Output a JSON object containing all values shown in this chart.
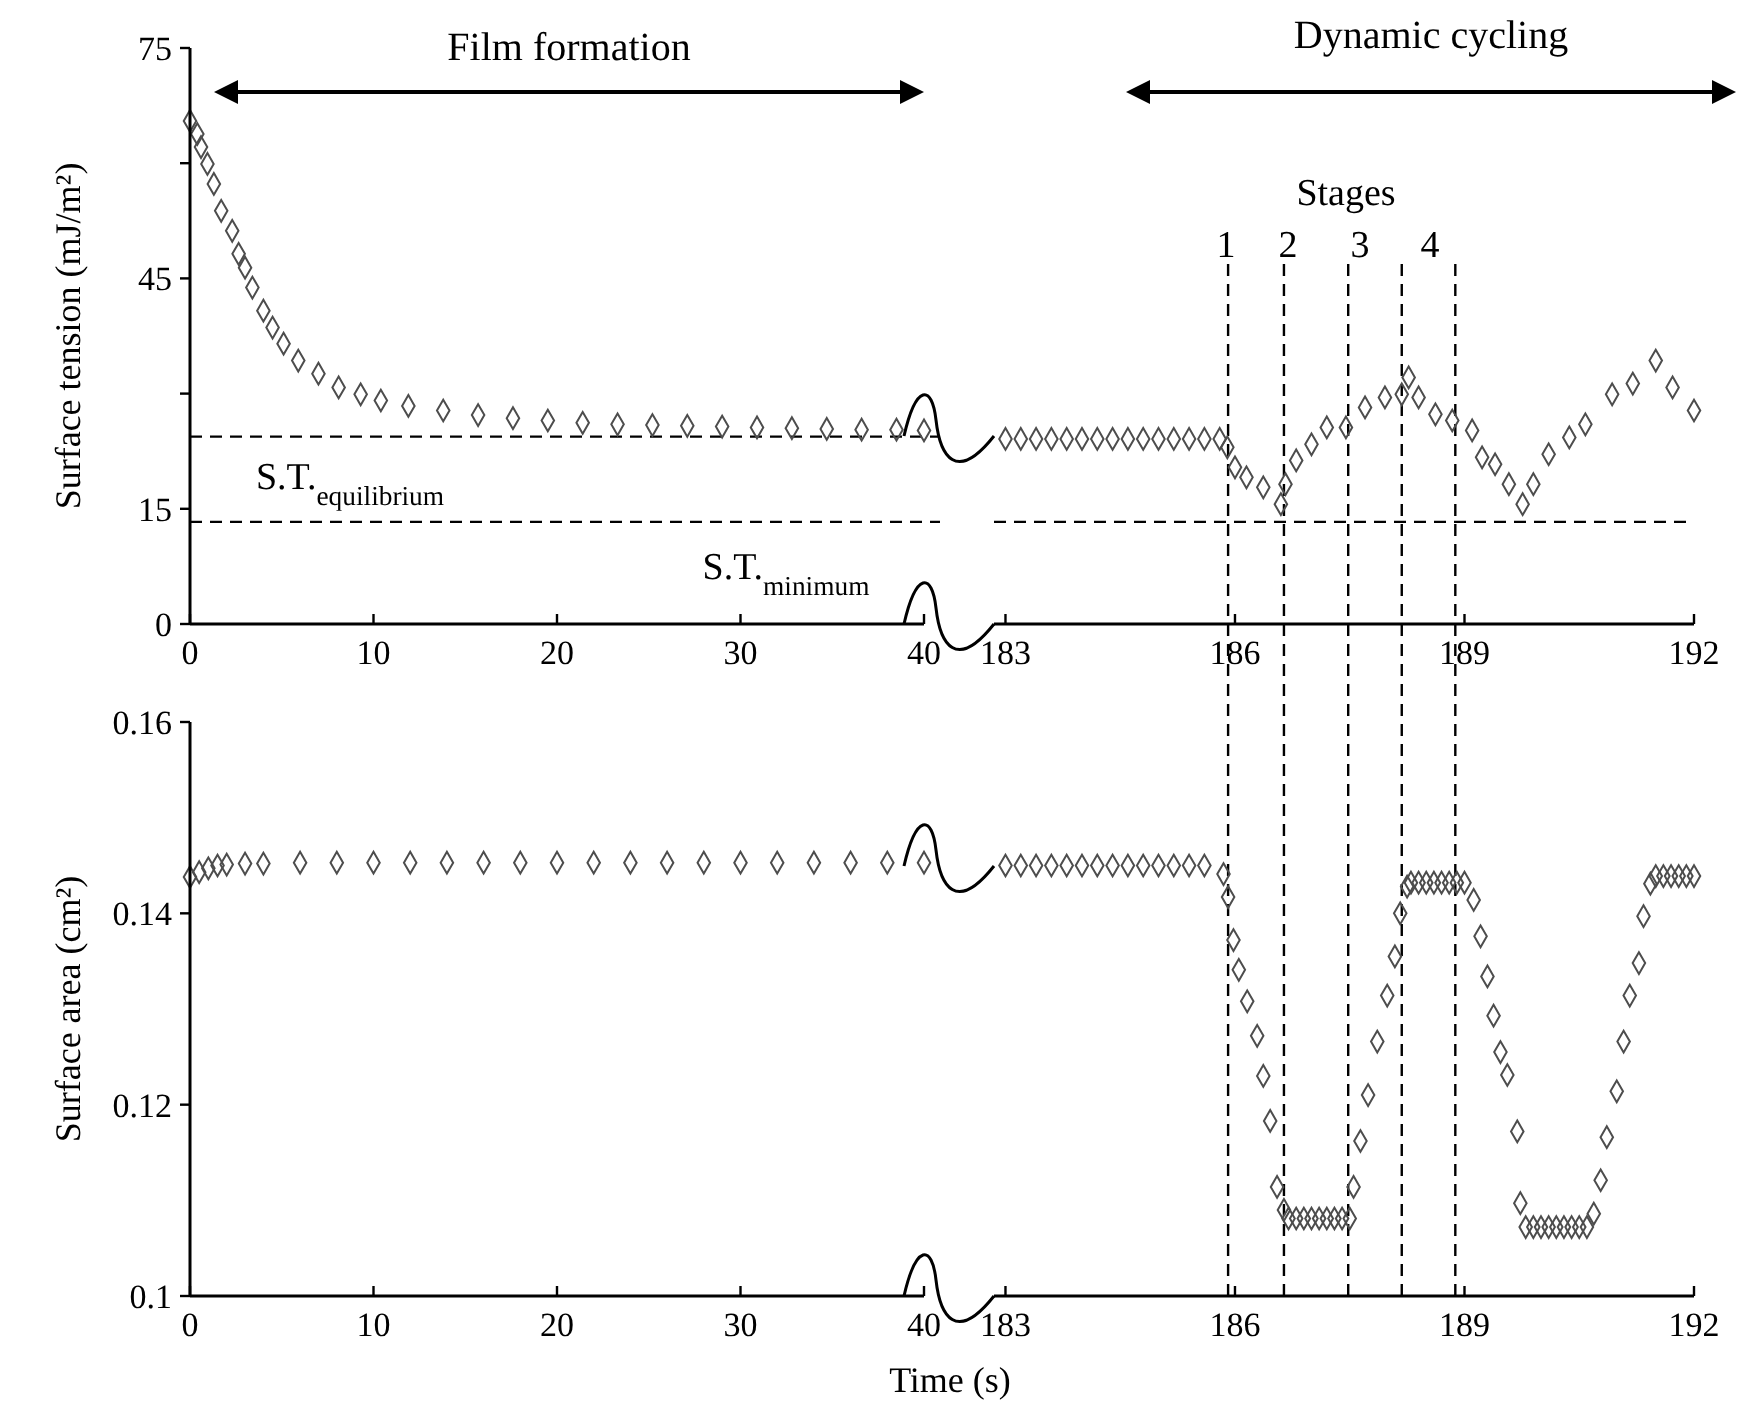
{
  "chart_data": [
    {
      "type": "scatter",
      "title": "Film formation",
      "ylabel": "Surface tension (mJ/m²)",
      "xlim": [
        0,
        40
      ],
      "xticks": [
        0,
        10,
        20,
        30,
        40
      ],
      "ylim": [
        0,
        75
      ],
      "yticks": [
        0,
        15,
        {
          "value": 30,
          "label": null
        },
        45,
        {
          "value": 60,
          "label": null
        },
        75
      ],
      "marker": "diamond",
      "series": [
        {
          "color": "#4d4d4d",
          "x": [
            0,
            0.4,
            0.6,
            0.95,
            1.3,
            1.7,
            2.3,
            2.65,
            3,
            3.4,
            4,
            4.5,
            5.1,
            5.9,
            7,
            8.1,
            9.3,
            10.4,
            11.9,
            13.8,
            15.7,
            17.6,
            19.5,
            21.4,
            23.3,
            25.2,
            27.1,
            29,
            30.9,
            32.8,
            34.7,
            36.6,
            38.5,
            40
          ],
          "values": [
            65.5,
            63.8,
            62.1,
            59.9,
            57.3,
            53.8,
            51.2,
            48.2,
            46.4,
            43.8,
            40.8,
            38.6,
            36.5,
            34.3,
            32.6,
            30.8,
            29.9,
            29.1,
            28.4,
            27.8,
            27.2,
            26.8,
            26.5,
            26.2,
            26.0,
            25.9,
            25.8,
            25.7,
            25.6,
            25.5,
            25.4,
            25.3,
            25.3,
            25.2
          ]
        }
      ],
      "ref_lines": [
        {
          "axis": "y",
          "value": 24.4,
          "line_style": "dashed",
          "color": "#000000"
        },
        {
          "axis": "y",
          "value": 13.3,
          "line_style": "dashed",
          "color": "#000000"
        }
      ],
      "annotations": [
        "S.T.$_{equilibrium}$",
        "S.T.$_{minimum}$"
      ]
    },
    {
      "type": "scatter",
      "title": "Dynamic cycling",
      "xlim": [
        182.85,
        192
      ],
      "xticks": [
        183,
        186,
        189,
        192
      ],
      "ylim": [
        0,
        75
      ],
      "tick_labels": "x",
      "marker": "diamond",
      "series": [
        {
          "color": "#4d4d4d",
          "x": [
            183,
            183.2,
            183.4,
            183.6,
            183.8,
            184,
            184.2,
            184.4,
            184.6,
            184.8,
            185,
            185.2,
            185.4,
            185.6,
            185.8,
            185.9,
            186,
            186.15,
            186.37,
            186.6,
            186.66,
            186.8,
            187,
            187.2,
            187.45,
            187.7,
            187.96,
            188.18,
            188.27,
            188.4,
            188.62,
            188.84,
            189.1,
            189.23,
            189.4,
            189.58,
            189.76,
            189.9,
            190.1,
            190.37,
            190.58,
            190.93,
            191.2,
            191.5,
            191.72,
            192
          ],
          "values": [
            24.1,
            24.1,
            24.1,
            24.1,
            24.1,
            24.1,
            24.1,
            24.1,
            24.1,
            24.1,
            24.1,
            24.1,
            24.1,
            24.1,
            24.1,
            23.0,
            20.4,
            19.1,
            17.8,
            15.6,
            18.2,
            21.3,
            23.4,
            25.6,
            25.6,
            28.2,
            29.5,
            29.9,
            32.1,
            29.5,
            27.3,
            26.5,
            25.2,
            21.7,
            20.8,
            18.2,
            15.6,
            18.2,
            22.1,
            24.3,
            26.0,
            29.9,
            31.3,
            34.3,
            30.8,
            27.8
          ]
        }
      ],
      "ref_lines": [
        {
          "axis": "y",
          "value": 13.3,
          "line_style": "dashed",
          "color": "#000000"
        },
        {
          "axis": "x",
          "value": 185.91,
          "line_style": "dashed",
          "color": "#000000"
        },
        {
          "axis": "x",
          "value": 186.64,
          "line_style": "dashed",
          "color": "#000000"
        },
        {
          "axis": "x",
          "value": 187.48,
          "line_style": "dashed",
          "color": "#000000"
        },
        {
          "axis": "x",
          "value": 188.18,
          "line_style": "dashed",
          "color": "#000000"
        },
        {
          "axis": "x",
          "value": 188.88,
          "line_style": "dashed",
          "color": "#000000"
        }
      ],
      "annotations": [
        "Stages",
        "1",
        "2",
        "3",
        "4"
      ]
    },
    {
      "type": "scatter",
      "xlabel": "Time (s)",
      "ylabel": "Surface area (cm²)",
      "xlim": [
        0,
        40
      ],
      "xticks": [
        0,
        10,
        20,
        30,
        40
      ],
      "ylim": [
        0.1,
        0.16
      ],
      "yticks": [
        0.1,
        0.12,
        0.14,
        0.16
      ],
      "marker": "diamond",
      "series": [
        {
          "color": "#4d4d4d",
          "x": [
            0,
            0.5,
            1,
            1.5,
            2,
            3,
            4,
            6,
            8,
            10,
            12,
            14,
            16,
            18,
            20,
            22,
            24,
            26,
            28,
            30,
            32,
            34,
            36,
            38,
            40
          ],
          "values": [
            0.1438,
            0.1443,
            0.1447,
            0.145,
            0.1451,
            0.1452,
            0.1452,
            0.1453,
            0.1453,
            0.1453,
            0.1453,
            0.1453,
            0.1453,
            0.1453,
            0.1453,
            0.1453,
            0.1453,
            0.1453,
            0.1453,
            0.1453,
            0.1453,
            0.1453,
            0.1453,
            0.1453,
            0.1453
          ]
        }
      ]
    },
    {
      "type": "scatter",
      "xlim": [
        182.85,
        192
      ],
      "xticks": [
        183,
        186,
        189,
        192
      ],
      "ylim": [
        0.1,
        0.16
      ],
      "tick_labels": "x",
      "marker": "diamond",
      "series": [
        {
          "color": "#4d4d4d",
          "x": [
            183,
            183.2,
            183.4,
            183.6,
            183.8,
            184,
            184.2,
            184.4,
            184.6,
            184.8,
            185,
            185.2,
            185.4,
            185.6,
            185.85,
            185.91,
            185.98,
            186.05,
            186.16,
            186.29,
            186.37,
            186.46,
            186.55,
            186.64,
            186.7,
            186.8,
            186.9,
            187,
            187.1,
            187.2,
            187.3,
            187.4,
            187.5,
            187.55,
            187.64,
            187.74,
            187.86,
            187.99,
            188.09,
            188.16,
            188.25,
            188.3,
            188.4,
            188.5,
            188.6,
            188.7,
            188.8,
            188.9,
            189,
            189.12,
            189.21,
            189.3,
            189.38,
            189.47,
            189.56,
            189.69,
            189.73,
            189.8,
            189.9,
            190,
            190.1,
            190.2,
            190.3,
            190.4,
            190.5,
            190.6,
            190.69,
            190.78,
            190.86,
            190.99,
            191.08,
            191.16,
            191.28,
            191.34,
            191.43,
            191.5,
            191.6,
            191.7,
            191.8,
            191.9,
            192
          ],
          "values": [
            0.145,
            0.145,
            0.145,
            0.145,
            0.145,
            0.145,
            0.145,
            0.145,
            0.145,
            0.145,
            0.145,
            0.145,
            0.145,
            0.145,
            0.1441,
            0.1417,
            0.1372,
            0.1341,
            0.1308,
            0.1272,
            0.123,
            0.1183,
            0.1114,
            0.109,
            0.1081,
            0.1081,
            0.1081,
            0.1081,
            0.1081,
            0.1081,
            0.1081,
            0.1081,
            0.1081,
            0.1114,
            0.1162,
            0.121,
            0.1266,
            0.1314,
            0.1355,
            0.14,
            0.1428,
            0.1432,
            0.1432,
            0.1432,
            0.1432,
            0.1432,
            0.1432,
            0.1432,
            0.1432,
            0.1414,
            0.1376,
            0.1334,
            0.1293,
            0.1255,
            0.1231,
            0.1172,
            0.1097,
            0.1072,
            0.1072,
            0.1072,
            0.1072,
            0.1072,
            0.1072,
            0.1072,
            0.1072,
            0.1072,
            0.1086,
            0.1121,
            0.1166,
            0.1214,
            0.1266,
            0.1314,
            0.1348,
            0.1397,
            0.1431,
            0.1439,
            0.1439,
            0.1439,
            0.1439,
            0.1439,
            0.1439
          ]
        }
      ],
      "ref_lines": [
        {
          "axis": "x",
          "value": 185.91,
          "line_style": "dashed",
          "color": "#000000"
        },
        {
          "axis": "x",
          "value": 186.64,
          "line_style": "dashed",
          "color": "#000000"
        },
        {
          "axis": "x",
          "value": 187.48,
          "line_style": "dashed",
          "color": "#000000"
        },
        {
          "axis": "x",
          "value": 188.18,
          "line_style": "dashed",
          "color": "#000000"
        },
        {
          "axis": "x",
          "value": 188.88,
          "line_style": "dashed",
          "color": "#000000"
        }
      ]
    }
  ]
}
